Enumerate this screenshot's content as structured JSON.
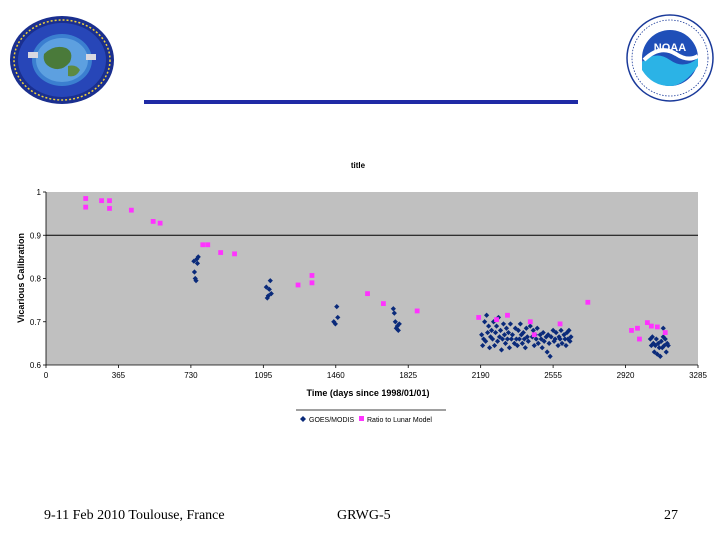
{
  "slide": {
    "footer_left": "9-11 Feb 2010 Toulouse, France",
    "footer_center": "GRWG-5",
    "footer_right": "27"
  },
  "logos": {
    "left": "org-seal-icon",
    "right": "noaa-logo-icon",
    "right_text": "NOAA"
  },
  "colors": {
    "rule": "#1f2aa5",
    "plot_bg": "#c0c0c0",
    "goes": "#0a2a7a",
    "ratio": "#ff33ff"
  },
  "chart_data": {
    "type": "scatter",
    "title": "title",
    "xlabel": "Time (days since 1998/01/01)",
    "ylabel": "Vicarious Calibration",
    "xlim": [
      0,
      3285
    ],
    "ylim": [
      0.6,
      1.0
    ],
    "xticks": [
      0,
      365,
      730,
      1095,
      1460,
      1825,
      2190,
      2555,
      2920,
      3285
    ],
    "yticks": [
      0.6,
      0.7,
      0.8,
      0.9,
      1.0
    ],
    "ytick_labels": [
      "0.6",
      "0.7",
      "0.8",
      "0.9",
      "1"
    ],
    "reference_line": 0.9,
    "legend_position": "bottom",
    "series": [
      {
        "name": "GOES/MODIS",
        "marker": "diamond",
        "points": [
          [
            745,
            0.84
          ],
          [
            748,
            0.815
          ],
          [
            752,
            0.8
          ],
          [
            756,
            0.795
          ],
          [
            760,
            0.845
          ],
          [
            763,
            0.835
          ],
          [
            767,
            0.85
          ],
          [
            1110,
            0.78
          ],
          [
            1115,
            0.755
          ],
          [
            1120,
            0.76
          ],
          [
            1125,
            0.775
          ],
          [
            1130,
            0.795
          ],
          [
            1135,
            0.765
          ],
          [
            1450,
            0.7
          ],
          [
            1458,
            0.695
          ],
          [
            1465,
            0.735
          ],
          [
            1470,
            0.71
          ],
          [
            1750,
            0.73
          ],
          [
            1755,
            0.72
          ],
          [
            1760,
            0.7
          ],
          [
            1765,
            0.685
          ],
          [
            1770,
            0.69
          ],
          [
            1775,
            0.68
          ],
          [
            1780,
            0.695
          ],
          [
            2195,
            0.67
          ],
          [
            2200,
            0.645
          ],
          [
            2205,
            0.66
          ],
          [
            2210,
            0.7
          ],
          [
            2215,
            0.655
          ],
          [
            2220,
            0.715
          ],
          [
            2225,
            0.675
          ],
          [
            2230,
            0.69
          ],
          [
            2235,
            0.64
          ],
          [
            2240,
            0.665
          ],
          [
            2245,
            0.68
          ],
          [
            2250,
            0.66
          ],
          [
            2255,
            0.7
          ],
          [
            2260,
            0.645
          ],
          [
            2265,
            0.675
          ],
          [
            2270,
            0.69
          ],
          [
            2275,
            0.655
          ],
          [
            2280,
            0.71
          ],
          [
            2285,
            0.665
          ],
          [
            2290,
            0.68
          ],
          [
            2295,
            0.635
          ],
          [
            2300,
            0.66
          ],
          [
            2305,
            0.695
          ],
          [
            2310,
            0.67
          ],
          [
            2315,
            0.65
          ],
          [
            2320,
            0.685
          ],
          [
            2325,
            0.66
          ],
          [
            2330,
            0.675
          ],
          [
            2335,
            0.64
          ],
          [
            2340,
            0.695
          ],
          [
            2345,
            0.66
          ],
          [
            2350,
            0.67
          ],
          [
            2360,
            0.65
          ],
          [
            2365,
            0.685
          ],
          [
            2370,
            0.66
          ],
          [
            2375,
            0.645
          ],
          [
            2380,
            0.68
          ],
          [
            2385,
            0.66
          ],
          [
            2390,
            0.695
          ],
          [
            2395,
            0.67
          ],
          [
            2400,
            0.65
          ],
          [
            2405,
            0.675
          ],
          [
            2410,
            0.66
          ],
          [
            2415,
            0.64
          ],
          [
            2420,
            0.685
          ],
          [
            2425,
            0.665
          ],
          [
            2430,
            0.655
          ],
          [
            2440,
            0.69
          ],
          [
            2450,
            0.665
          ],
          [
            2455,
            0.68
          ],
          [
            2460,
            0.645
          ],
          [
            2465,
            0.67
          ],
          [
            2470,
            0.66
          ],
          [
            2475,
            0.685
          ],
          [
            2480,
            0.65
          ],
          [
            2490,
            0.67
          ],
          [
            2495,
            0.66
          ],
          [
            2500,
            0.64
          ],
          [
            2505,
            0.675
          ],
          [
            2510,
            0.655
          ],
          [
            2520,
            0.665
          ],
          [
            2525,
            0.63
          ],
          [
            2530,
            0.67
          ],
          [
            2535,
            0.65
          ],
          [
            2540,
            0.62
          ],
          [
            2545,
            0.665
          ],
          [
            2555,
            0.68
          ],
          [
            2560,
            0.655
          ],
          [
            2565,
            0.66
          ],
          [
            2570,
            0.675
          ],
          [
            2580,
            0.645
          ],
          [
            2585,
            0.665
          ],
          [
            2590,
            0.66
          ],
          [
            2595,
            0.68
          ],
          [
            2600,
            0.65
          ],
          [
            2610,
            0.67
          ],
          [
            2615,
            0.66
          ],
          [
            2620,
            0.645
          ],
          [
            2625,
            0.675
          ],
          [
            2630,
            0.66
          ],
          [
            2635,
            0.68
          ],
          [
            2640,
            0.655
          ],
          [
            2645,
            0.665
          ],
          [
            3045,
            0.66
          ],
          [
            3050,
            0.645
          ],
          [
            3055,
            0.665
          ],
          [
            3060,
            0.65
          ],
          [
            3065,
            0.63
          ],
          [
            3070,
            0.645
          ],
          [
            3075,
            0.66
          ],
          [
            3080,
            0.625
          ],
          [
            3085,
            0.65
          ],
          [
            3090,
            0.64
          ],
          [
            3095,
            0.62
          ],
          [
            3100,
            0.655
          ],
          [
            3105,
            0.64
          ],
          [
            3110,
            0.665
          ],
          [
            3115,
            0.645
          ],
          [
            3120,
            0.66
          ],
          [
            3125,
            0.63
          ],
          [
            3130,
            0.65
          ],
          [
            3135,
            0.645
          ],
          [
            3110,
            0.685
          ]
        ]
      },
      {
        "name": "Ratio to Lunar Model",
        "marker": "square",
        "points": [
          [
            200,
            0.985
          ],
          [
            200,
            0.965
          ],
          [
            280,
            0.98
          ],
          [
            320,
            0.98
          ],
          [
            320,
            0.962
          ],
          [
            430,
            0.958
          ],
          [
            540,
            0.932
          ],
          [
            575,
            0.928
          ],
          [
            790,
            0.878
          ],
          [
            815,
            0.878
          ],
          [
            880,
            0.86
          ],
          [
            950,
            0.857
          ],
          [
            1270,
            0.785
          ],
          [
            1340,
            0.807
          ],
          [
            1340,
            0.79
          ],
          [
            1620,
            0.765
          ],
          [
            1700,
            0.742
          ],
          [
            1870,
            0.725
          ],
          [
            2180,
            0.71
          ],
          [
            2270,
            0.705
          ],
          [
            2325,
            0.715
          ],
          [
            2440,
            0.7
          ],
          [
            2590,
            0.695
          ],
          [
            2730,
            0.745
          ],
          [
            2950,
            0.68
          ],
          [
            2980,
            0.685
          ],
          [
            3030,
            0.698
          ],
          [
            3050,
            0.69
          ],
          [
            2990,
            0.66
          ],
          [
            3080,
            0.688
          ],
          [
            3120,
            0.675
          ],
          [
            2460,
            0.67
          ]
        ]
      }
    ]
  }
}
